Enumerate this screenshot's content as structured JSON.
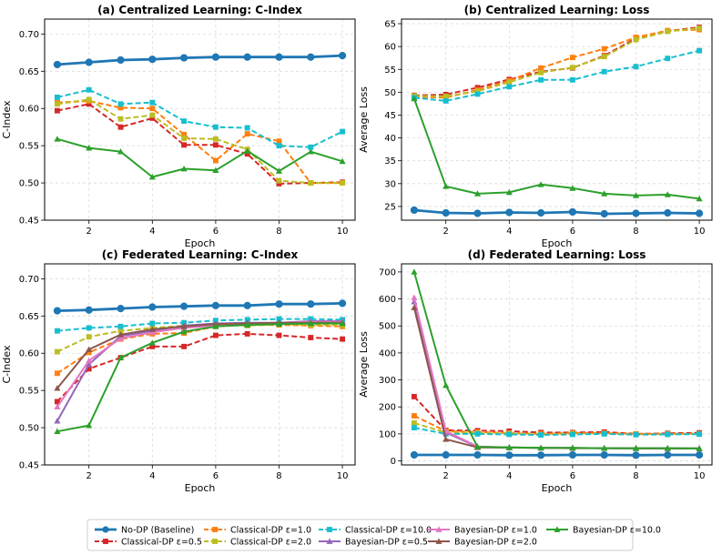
{
  "chart_data": [
    {
      "id": "a",
      "type": "line",
      "title": "(a) Centralized Learning: C-Index",
      "xlabel": "Epoch",
      "ylabel": "C-Index",
      "x": [
        1,
        2,
        3,
        4,
        5,
        6,
        7,
        8,
        9,
        10
      ],
      "xlim": [
        0.6,
        10.4
      ],
      "ylim": [
        0.45,
        0.72
      ],
      "xticks": [
        2,
        4,
        6,
        8,
        10
      ],
      "yticks": [
        0.45,
        0.5,
        0.55,
        0.6,
        0.65,
        0.7
      ],
      "ytick_labels": [
        "0.45",
        "0.50",
        "0.55",
        "0.60",
        "0.65",
        "0.70"
      ],
      "grid": true,
      "series": [
        {
          "key": "nodp",
          "values": [
            0.659,
            0.662,
            0.665,
            0.666,
            0.668,
            0.669,
            0.669,
            0.669,
            0.669,
            0.671
          ]
        },
        {
          "key": "c05",
          "values": [
            0.597,
            0.606,
            0.575,
            0.587,
            0.551,
            0.551,
            0.539,
            0.499,
            0.5,
            0.501
          ]
        },
        {
          "key": "c1",
          "values": [
            0.608,
            0.61,
            0.601,
            0.6,
            0.565,
            0.53,
            0.566,
            0.556,
            0.5,
            0.5
          ]
        },
        {
          "key": "c2",
          "values": [
            0.606,
            0.612,
            0.586,
            0.591,
            0.56,
            0.559,
            0.545,
            0.503,
            0.5,
            0.5
          ]
        },
        {
          "key": "c10",
          "values": [
            0.615,
            0.625,
            0.606,
            0.608,
            0.583,
            0.575,
            0.574,
            0.55,
            0.548,
            0.569
          ]
        },
        {
          "key": "b10",
          "values": [
            0.559,
            0.547,
            0.542,
            0.508,
            0.519,
            0.517,
            0.543,
            0.516,
            0.542,
            0.529
          ]
        }
      ]
    },
    {
      "id": "b",
      "type": "line",
      "title": "(b) Centralized Learning: Loss",
      "xlabel": "Epoch",
      "ylabel": "Average Loss",
      "x": [
        1,
        2,
        3,
        4,
        5,
        6,
        7,
        8,
        9,
        10
      ],
      "xlim": [
        0.6,
        10.4
      ],
      "ylim": [
        22,
        66
      ],
      "xticks": [
        2,
        4,
        6,
        8,
        10
      ],
      "yticks": [
        25,
        30,
        35,
        40,
        45,
        50,
        55,
        60,
        65
      ],
      "ytick_labels": [
        "25",
        "30",
        "35",
        "40",
        "45",
        "50",
        "55",
        "60",
        "65"
      ],
      "grid": true,
      "series": [
        {
          "key": "nodp",
          "values": [
            24.2,
            23.6,
            23.5,
            23.7,
            23.6,
            23.8,
            23.4,
            23.5,
            23.6,
            23.5
          ]
        },
        {
          "key": "c05",
          "values": [
            49.3,
            49.5,
            51.0,
            52.8,
            54.5,
            55.3,
            58.0,
            61.8,
            63.4,
            64.2
          ]
        },
        {
          "key": "c1",
          "values": [
            49.0,
            48.8,
            50.5,
            52.5,
            55.3,
            57.6,
            59.5,
            62.0,
            63.5,
            63.7
          ]
        },
        {
          "key": "c2",
          "values": [
            49.2,
            49.1,
            50.2,
            52.2,
            54.3,
            55.4,
            57.8,
            61.5,
            63.3,
            64.0
          ]
        },
        {
          "key": "c10",
          "values": [
            48.8,
            48.1,
            49.6,
            51.2,
            52.7,
            52.7,
            54.5,
            55.6,
            57.4,
            59.1
          ]
        },
        {
          "key": "b10",
          "values": [
            48.6,
            29.4,
            27.8,
            28.1,
            29.8,
            29.0,
            27.8,
            27.4,
            27.6,
            26.7
          ]
        }
      ]
    },
    {
      "id": "c",
      "type": "line",
      "title": "(c) Federated Learning: C-Index",
      "xlabel": "Epoch",
      "ylabel": "C-Index",
      "x": [
        1,
        2,
        3,
        4,
        5,
        6,
        7,
        8,
        9,
        10
      ],
      "xlim": [
        0.6,
        10.4
      ],
      "ylim": [
        0.45,
        0.72
      ],
      "xticks": [
        2,
        4,
        6,
        8,
        10
      ],
      "yticks": [
        0.45,
        0.5,
        0.55,
        0.6,
        0.65,
        0.7
      ],
      "ytick_labels": [
        "0.45",
        "0.50",
        "0.55",
        "0.60",
        "0.65",
        "0.70"
      ],
      "grid": true,
      "series": [
        {
          "key": "nodp",
          "values": [
            0.657,
            0.658,
            0.66,
            0.662,
            0.663,
            0.664,
            0.664,
            0.666,
            0.666,
            0.667
          ]
        },
        {
          "key": "c05",
          "values": [
            0.535,
            0.579,
            0.594,
            0.609,
            0.609,
            0.624,
            0.626,
            0.624,
            0.621,
            0.619
          ]
        },
        {
          "key": "c1",
          "values": [
            0.573,
            0.601,
            0.619,
            0.626,
            0.627,
            0.636,
            0.638,
            0.638,
            0.637,
            0.636
          ]
        },
        {
          "key": "c2",
          "values": [
            0.602,
            0.622,
            0.63,
            0.634,
            0.637,
            0.638,
            0.637,
            0.639,
            0.638,
            0.638
          ]
        },
        {
          "key": "c10",
          "values": [
            0.63,
            0.634,
            0.636,
            0.64,
            0.641,
            0.644,
            0.645,
            0.646,
            0.646,
            0.645
          ]
        },
        {
          "key": "b05",
          "values": [
            0.509,
            0.585,
            0.623,
            0.63,
            0.637,
            0.64,
            0.641,
            0.641,
            0.643,
            0.643
          ]
        },
        {
          "key": "b1",
          "values": [
            0.528,
            0.59,
            0.62,
            0.628,
            0.634,
            0.637,
            0.639,
            0.641,
            0.642,
            0.642
          ]
        },
        {
          "key": "b2",
          "values": [
            0.553,
            0.605,
            0.625,
            0.632,
            0.636,
            0.639,
            0.64,
            0.641,
            0.641,
            0.641
          ]
        },
        {
          "key": "b10",
          "values": [
            0.495,
            0.503,
            0.594,
            0.614,
            0.629,
            0.636,
            0.638,
            0.639,
            0.64,
            0.64
          ]
        }
      ]
    },
    {
      "id": "d",
      "type": "line",
      "title": "(d) Federated Learning: Loss",
      "xlabel": "Epoch",
      "ylabel": "Average Loss",
      "x": [
        1,
        2,
        3,
        4,
        5,
        6,
        7,
        8,
        9,
        10
      ],
      "xlim": [
        0.6,
        10.4
      ],
      "ylim": [
        -15,
        730
      ],
      "xticks": [
        2,
        4,
        6,
        8,
        10
      ],
      "yticks": [
        0,
        100,
        200,
        300,
        400,
        500,
        600,
        700
      ],
      "ytick_labels": [
        "0",
        "100",
        "200",
        "300",
        "400",
        "500",
        "600",
        "700"
      ],
      "grid": true,
      "series": [
        {
          "key": "nodp",
          "values": [
            22,
            22,
            22,
            21,
            21,
            22,
            22,
            21,
            22,
            22
          ]
        },
        {
          "key": "c05",
          "values": [
            238,
            113,
            112,
            110,
            105,
            105,
            107,
            100,
            102,
            104
          ]
        },
        {
          "key": "c1",
          "values": [
            167,
            110,
            107,
            103,
            100,
            103,
            103,
            100,
            100,
            101
          ]
        },
        {
          "key": "c2",
          "values": [
            140,
            105,
            103,
            102,
            98,
            100,
            101,
            98,
            99,
            100
          ]
        },
        {
          "key": "c10",
          "values": [
            123,
            100,
            100,
            98,
            96,
            98,
            100,
            97,
            98,
            99
          ]
        },
        {
          "key": "b05",
          "values": [
            590,
            105,
            52,
            50,
            48,
            48,
            47,
            47,
            47,
            46
          ]
        },
        {
          "key": "b1",
          "values": [
            605,
            110,
            53,
            50,
            48,
            48,
            47,
            47,
            46,
            46
          ]
        },
        {
          "key": "b2",
          "values": [
            568,
            80,
            50,
            49,
            48,
            47,
            47,
            46,
            46,
            46
          ]
        },
        {
          "key": "b10",
          "values": [
            700,
            280,
            52,
            50,
            48,
            48,
            47,
            47,
            47,
            46
          ]
        }
      ]
    }
  ],
  "legend": {
    "placement": "bottom-center",
    "items": [
      {
        "key": "nodp",
        "label": "No-DP (Baseline)",
        "color": "#1f77b4",
        "marker": "circle",
        "dash": "solid",
        "width": 2.8
      },
      {
        "key": "c05",
        "label": "Classical-DP ε=0.5",
        "color": "#d62728",
        "marker": "square",
        "dash": "dashed",
        "width": 2
      },
      {
        "key": "c1",
        "label": "Classical-DP ε=1.0",
        "color": "#ff7f0e",
        "marker": "square",
        "dash": "dashed",
        "width": 2
      },
      {
        "key": "c2",
        "label": "Classical-DP ε=2.0",
        "color": "#bcbd22",
        "marker": "square",
        "dash": "dashed",
        "width": 2
      },
      {
        "key": "c10",
        "label": "Classical-DP ε=10.0",
        "color": "#17becf",
        "marker": "square",
        "dash": "dashed",
        "width": 2
      },
      {
        "key": "b05",
        "label": "Bayesian-DP ε=0.5",
        "color": "#9467bd",
        "marker": "triangle",
        "dash": "solid",
        "width": 2
      },
      {
        "key": "b1",
        "label": "Bayesian-DP ε=1.0",
        "color": "#e377c2",
        "marker": "triangle",
        "dash": "solid",
        "width": 2
      },
      {
        "key": "b2",
        "label": "Bayesian-DP ε=2.0",
        "color": "#8c564b",
        "marker": "triangle",
        "dash": "solid",
        "width": 2
      },
      {
        "key": "b10",
        "label": "Bayesian-DP ε=10.0",
        "color": "#2ca02c",
        "marker": "triangle",
        "dash": "solid",
        "width": 2
      }
    ]
  }
}
